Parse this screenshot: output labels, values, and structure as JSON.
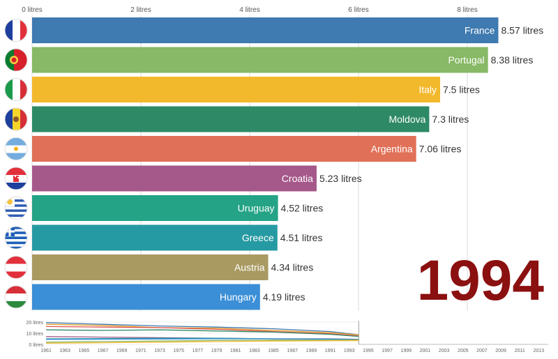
{
  "chart_data": {
    "type": "bar",
    "orientation": "horizontal",
    "year": "1994",
    "xlim": [
      0,
      8.6
    ],
    "x_ticks": [
      {
        "value": 0,
        "label": "0 litres"
      },
      {
        "value": 2,
        "label": "2 litres"
      },
      {
        "value": 4,
        "label": "4 litres"
      },
      {
        "value": 6,
        "label": "6 litres"
      },
      {
        "value": 8,
        "label": "8 litres"
      }
    ],
    "grid": true,
    "bars": [
      {
        "name": "France",
        "value": 8.57,
        "value_label": "8.57 litres",
        "color": "#3f7ab0",
        "flag": "france-flag"
      },
      {
        "name": "Portugal",
        "value": 8.38,
        "value_label": "8.38 litres",
        "color": "#88b966",
        "flag": "portugal-flag"
      },
      {
        "name": "Italy",
        "value": 7.5,
        "value_label": "7.5 litres",
        "color": "#f2b92c",
        "flag": "italy-flag"
      },
      {
        "name": "Moldova",
        "value": 7.3,
        "value_label": "7.3 litres",
        "color": "#2e8a66",
        "flag": "moldova-flag"
      },
      {
        "name": "Argentina",
        "value": 7.06,
        "value_label": "7.06 litres",
        "color": "#e07158",
        "flag": "argentina-flag"
      },
      {
        "name": "Croatia",
        "value": 5.23,
        "value_label": "5.23 litres",
        "color": "#a5588a",
        "flag": "croatia-flag"
      },
      {
        "name": "Uruguay",
        "value": 4.52,
        "value_label": "4.52 litres",
        "color": "#24a386",
        "flag": "uruguay-flag"
      },
      {
        "name": "Greece",
        "value": 4.51,
        "value_label": "4.51 litres",
        "color": "#269aa2",
        "flag": "greece-flag"
      },
      {
        "name": "Austria",
        "value": 4.34,
        "value_label": "4.34 litres",
        "color": "#a99a62",
        "flag": "austria-flag"
      },
      {
        "name": "Hungary",
        "value": 4.19,
        "value_label": "4.19 litres",
        "color": "#3b8fd6",
        "flag": "hungary-flag"
      }
    ],
    "timeline": {
      "type": "line",
      "ylim": [
        0,
        20
      ],
      "y_ticks": [
        {
          "value": 0,
          "label": "0 litres"
        },
        {
          "value": 10,
          "label": "10 litres"
        },
        {
          "value": 20,
          "label": "20 litres"
        }
      ],
      "x_range": [
        1961,
        2014
      ],
      "current_year": 1994,
      "x_ticks": [
        "1961",
        "1963",
        "1965",
        "1967",
        "1969",
        "1971",
        "1973",
        "1975",
        "1977",
        "1979",
        "1981",
        "1983",
        "1985",
        "1987",
        "1989",
        "1991",
        "1993",
        "1995",
        "1997",
        "1999",
        "2001",
        "2003",
        "2005",
        "2007",
        "2009",
        "2011",
        "2013"
      ],
      "x": [
        1961,
        1967,
        1973,
        1979,
        1985,
        1991,
        1994
      ],
      "series": [
        {
          "values": [
            19.5,
            18.0,
            16.5,
            15.5,
            14.0,
            11.5,
            8.6
          ],
          "color": "#3f7ab0"
        },
        {
          "values": [
            18.0,
            17.0,
            15.0,
            14.5,
            12.5,
            10.5,
            8.4
          ],
          "color": "#e6a030"
        },
        {
          "values": [
            16.0,
            15.5,
            15.0,
            13.5,
            11.5,
            9.5,
            7.5
          ],
          "color": "#d9534f"
        },
        {
          "values": [
            13.0,
            12.5,
            13.0,
            12.0,
            11.0,
            9.0,
            7.1
          ],
          "color": "#2e8a66"
        },
        {
          "values": [
            7.0,
            6.5,
            6.0,
            5.5,
            5.0,
            5.0,
            4.5
          ],
          "color": "#a5588a"
        },
        {
          "values": [
            5.0,
            5.2,
            5.5,
            5.5,
            5.0,
            4.8,
            4.3
          ],
          "color": "#269aa2"
        },
        {
          "values": [
            4.5,
            4.6,
            4.8,
            5.0,
            5.0,
            4.6,
            4.2
          ],
          "color": "#3b8fd6"
        },
        {
          "values": [
            2.0,
            2.5,
            3.0,
            3.5,
            3.8,
            3.9,
            4.0
          ],
          "color": "#88b966"
        },
        {
          "values": [
            1.0,
            1.5,
            2.0,
            2.5,
            3.0,
            3.2,
            3.4
          ],
          "color": "#f2b92c"
        }
      ]
    }
  }
}
